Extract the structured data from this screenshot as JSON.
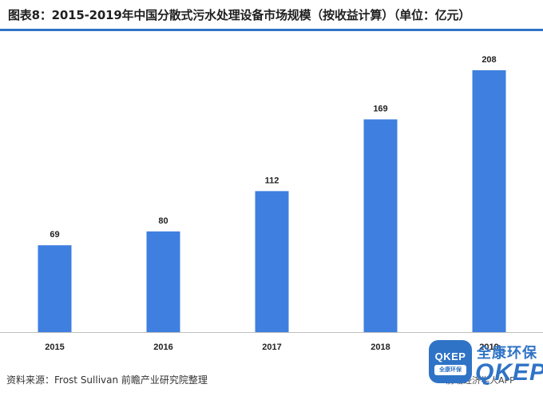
{
  "title": "图表8：2015-2019年中国分散式污水处理设备市场规模（按收益计算）（单位：亿元）",
  "source": "资料来源：Frost Sullivan 前瞻产业研究院整理",
  "watermark_text": "前瞻经济学人APP",
  "brand": {
    "logo_top": "QKEP",
    "logo_bottom": "全康环保",
    "name_cn": "全康环保",
    "name_en": "QKEP"
  },
  "colors": {
    "bar": "#3e7fe0",
    "title_rule": "#2f73c6",
    "brand": "#2f73c6"
  },
  "chart_data": {
    "type": "bar",
    "categories": [
      "2015",
      "2016",
      "2017",
      "2018",
      "2019"
    ],
    "values": [
      69,
      80,
      112,
      169,
      208
    ],
    "title": "图表8：2015-2019年中国分散式污水处理设备市场规模（按收益计算）（单位：亿元）",
    "xlabel": "",
    "ylabel": "",
    "unit": "亿元",
    "data_labels": [
      "69",
      "80",
      "112",
      "169",
      "208"
    ],
    "grid": false,
    "legend": "none"
  }
}
